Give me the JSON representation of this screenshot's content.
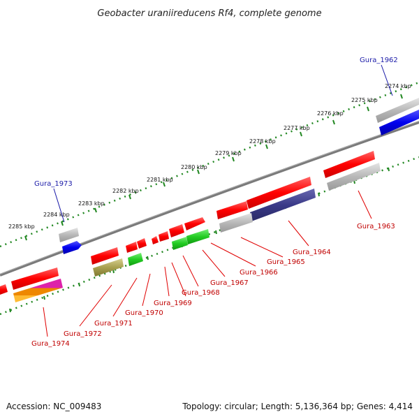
{
  "header": {
    "title": "Geobacter uraniireducens Rf4, complete genome"
  },
  "footer": {
    "accession": "Accession: NC_009483",
    "summary": "Topology: circular; Length: 5,136,364 bp; Genes: 4,414"
  },
  "ticks": [
    "2274 kbp",
    "2275 kbp",
    "2276 kbp",
    "2277 kbp",
    "2278 kbp",
    "2279 kbp",
    "2280 kbp",
    "2281 kbp",
    "2282 kbp",
    "2283 kbp",
    "2284 kbp",
    "2285 kbp"
  ],
  "labels": {
    "gura_1962": "Gura_1962",
    "gura_1963": "Gura_1963",
    "gura_1964": "Gura_1964",
    "gura_1965": "Gura_1965",
    "gura_1966": "Gura_1966",
    "gura_1967": "Gura_1967",
    "gura_1968": "Gura_1968",
    "gura_1969": "Gura_1969",
    "gura_1970": "Gura_1970",
    "gura_1971": "Gura_1971",
    "gura_1972": "Gura_1972",
    "gura_1973": "Gura_1973",
    "gura_1974": "Gura_1974"
  },
  "colors": {
    "gene_red": "#ff0000",
    "gene_blue": "#0000ee",
    "gene_green": "#22cc22",
    "gene_gray": "#b8b8b8",
    "cog_navy": "#3a3a88",
    "cog_olive": "#a8a050",
    "cog_magenta": "#dd22aa",
    "cog_orange": "#ee8800",
    "backbone": "#808080",
    "tick_green": "#228822",
    "label_red": "#c00000",
    "label_blue": "#1a1aa8"
  }
}
